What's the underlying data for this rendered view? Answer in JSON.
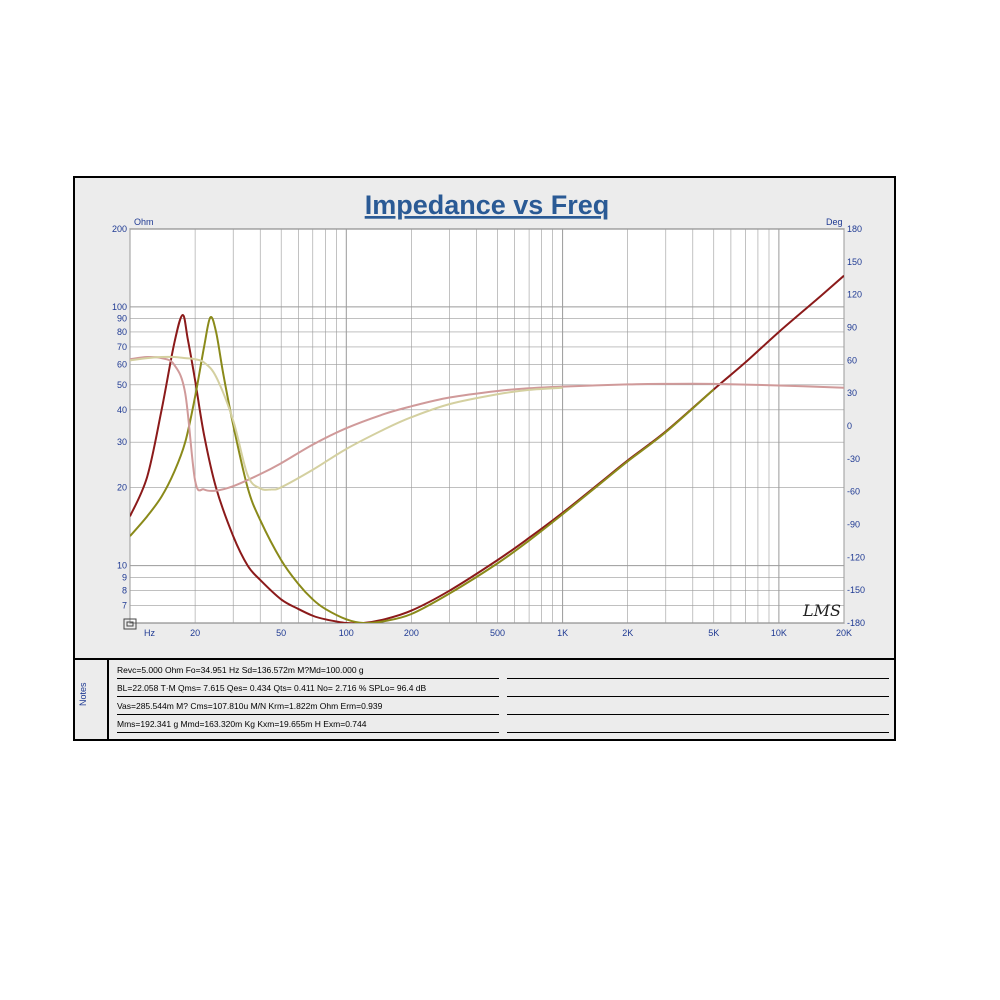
{
  "chart_data": {
    "type": "line",
    "title": "Impedance vs Freq",
    "y_left_unit": "Ohm",
    "y_right_unit": "Deg",
    "x_unit": "Hz",
    "x_scale": "log",
    "y_left_scale": "log",
    "xlim": [
      10,
      20000
    ],
    "ylim_left": [
      6,
      200
    ],
    "ylim_right": [
      -180,
      180
    ],
    "x_ticks": [
      {
        "value": 20,
        "label": "20"
      },
      {
        "value": 50,
        "label": "50"
      },
      {
        "value": 100,
        "label": "100"
      },
      {
        "value": 200,
        "label": "200"
      },
      {
        "value": 500,
        "label": "500"
      },
      {
        "value": 1000,
        "label": "1K"
      },
      {
        "value": 2000,
        "label": "2K"
      },
      {
        "value": 5000,
        "label": "5K"
      },
      {
        "value": 10000,
        "label": "10K"
      },
      {
        "value": 20000,
        "label": "20K"
      }
    ],
    "y_left_ticks": [
      {
        "value": 200,
        "label": "200"
      },
      {
        "value": 100,
        "label": "100"
      },
      {
        "value": 90,
        "label": "90"
      },
      {
        "value": 80,
        "label": "80"
      },
      {
        "value": 70,
        "label": "70"
      },
      {
        "value": 60,
        "label": "60"
      },
      {
        "value": 50,
        "label": "50"
      },
      {
        "value": 40,
        "label": "40"
      },
      {
        "value": 30,
        "label": "30"
      },
      {
        "value": 20,
        "label": "20"
      },
      {
        "value": 10,
        "label": "10"
      },
      {
        "value": 9,
        "label": "9"
      },
      {
        "value": 8,
        "label": "8"
      },
      {
        "value": 7,
        "label": "7"
      }
    ],
    "y_right_ticks": [
      {
        "value": 180,
        "label": "180"
      },
      {
        "value": 150,
        "label": "150"
      },
      {
        "value": 120,
        "label": "120"
      },
      {
        "value": 90,
        "label": "90"
      },
      {
        "value": 60,
        "label": "60"
      },
      {
        "value": 30,
        "label": "30"
      },
      {
        "value": 0,
        "label": "0"
      },
      {
        "value": -30,
        "label": "-30"
      },
      {
        "value": -60,
        "label": "-60"
      },
      {
        "value": -90,
        "label": "-90"
      },
      {
        "value": -120,
        "label": "-120"
      },
      {
        "value": -150,
        "label": "-150"
      },
      {
        "value": -180,
        "label": "-180"
      }
    ],
    "grid": true,
    "watermark": "LMS",
    "series": [
      {
        "color": "#8b1a1a",
        "axis": "left",
        "x": [
          10,
          12,
          14,
          16,
          17.5,
          18.5,
          20,
          22,
          25,
          30,
          35,
          40,
          50,
          60,
          70,
          80,
          100,
          120,
          150,
          200,
          300,
          500,
          700,
          1000,
          1500,
          2000,
          3000,
          5000,
          7000,
          10000,
          15000,
          20000
        ],
        "y": [
          15.5,
          22,
          40,
          72,
          93,
          75,
          52,
          32,
          20,
          13,
          10,
          8.8,
          7.4,
          6.8,
          6.4,
          6.2,
          6.0,
          6.0,
          6.2,
          6.7,
          8.0,
          10.5,
          12.8,
          16,
          21,
          25.5,
          33,
          48,
          61,
          80,
          107,
          132
        ]
      },
      {
        "color": "#8a8a1a",
        "axis": "left",
        "x": [
          10,
          12,
          14,
          16,
          18,
          20,
          22,
          23.5,
          25,
          27,
          30,
          35,
          40,
          50,
          60,
          70,
          80,
          100,
          120,
          150,
          200,
          300,
          500,
          700,
          1000,
          1500,
          2000,
          3000,
          5000
        ],
        "y": [
          13,
          15.5,
          18.5,
          23,
          30,
          45,
          70,
          91,
          80,
          55,
          35,
          20,
          15,
          10.5,
          8.5,
          7.4,
          6.8,
          6.2,
          6.0,
          6.1,
          6.5,
          7.8,
          10.2,
          12.5,
          15.8,
          20.8,
          25.3,
          32.8,
          48
        ]
      },
      {
        "color": "#d09a9a",
        "axis": "right",
        "x": [
          10,
          12,
          14,
          16,
          18,
          20,
          22,
          25,
          30,
          40,
          50,
          70,
          100,
          150,
          200,
          300,
          500,
          700,
          1000,
          2000,
          3000,
          5000,
          10000,
          20000
        ],
        "y": [
          61,
          63,
          62,
          56,
          30,
          -50,
          -58,
          -59,
          -55,
          -44,
          -34,
          -17,
          -2,
          11,
          18,
          26,
          32,
          34.5,
          36,
          38,
          38.5,
          38.5,
          37,
          35
        ]
      },
      {
        "color": "#d4d0a0",
        "axis": "right",
        "x": [
          10,
          12,
          14,
          16,
          18,
          20,
          22,
          25,
          30,
          35,
          40,
          45,
          50,
          70,
          100,
          150,
          200,
          300,
          500,
          700,
          1000
        ],
        "y": [
          60,
          62,
          63,
          63,
          62,
          61,
          58,
          45,
          5,
          -45,
          -57,
          -58,
          -56,
          -40,
          -21,
          -3,
          8,
          20,
          29,
          33,
          35
        ]
      }
    ]
  },
  "notes": {
    "label": "Notes",
    "lines": [
      "Revc=5.000  Ohm   Fo=34.951  Hz   Sd=136.572m  M?Md=100.000  g",
      "BL=22.058  T·M   Qms= 7.615   Qes= 0.434   Qts= 0.411   No= 2.716  %   SPLo= 96.4  dB",
      "Vas=285.544m  M?  Cms=107.810u  M/N   Krm=1.822m  Ohm   Erm=0.939",
      "Mms=192.341  g   Mmd=163.320m  Kg   Kxm=19.655m  H   Exm=0.744"
    ]
  },
  "colors": {
    "title": "#2a5a95",
    "axis_labels": "#1f3a93",
    "frame_bg": "#ececec",
    "plot_bg": "#ffffff",
    "grid": "#9a9a9a"
  }
}
